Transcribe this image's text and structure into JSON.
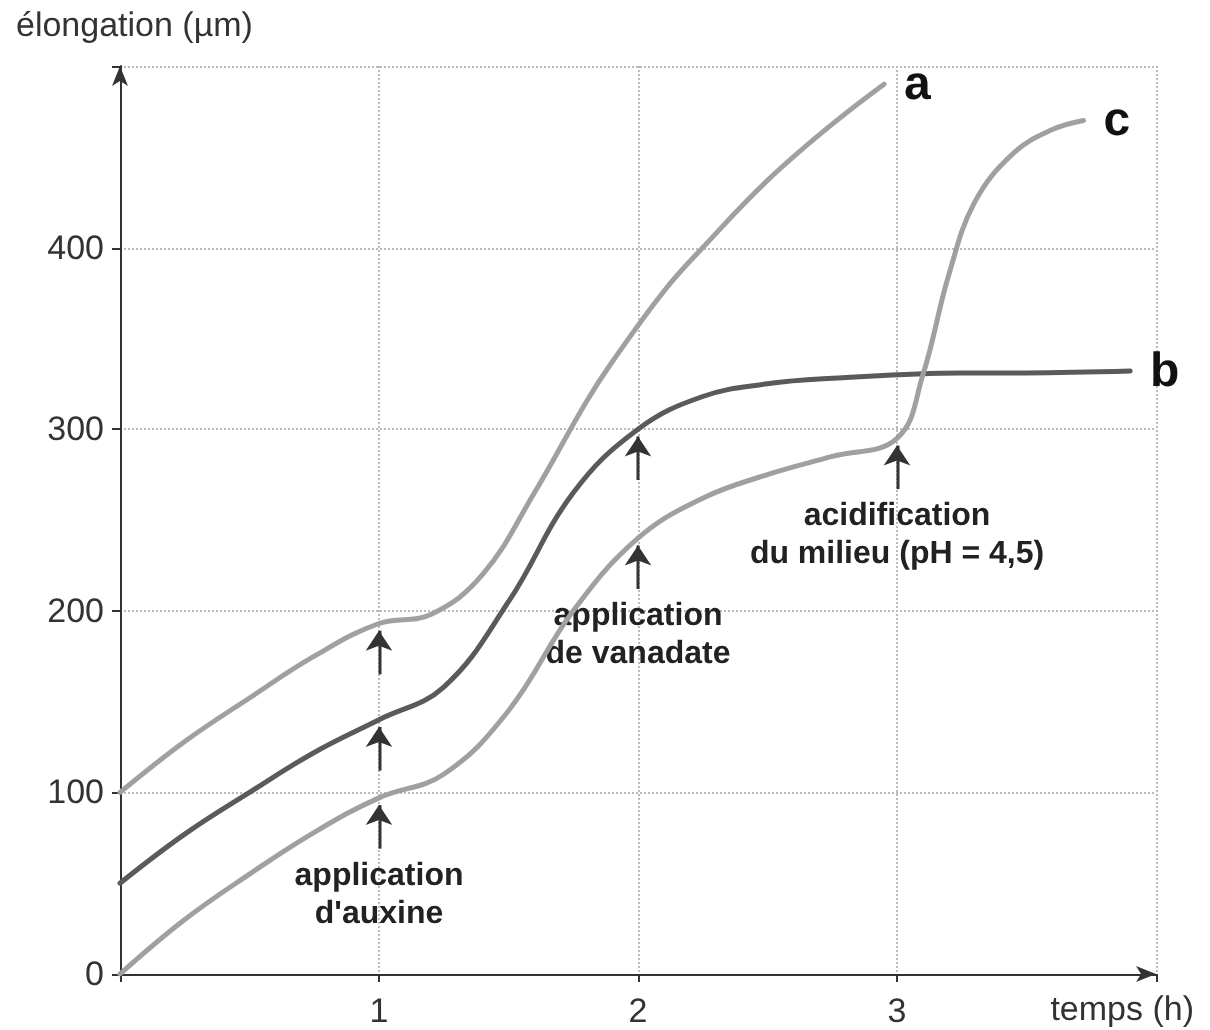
{
  "chart_data": {
    "type": "line",
    "xlabel": "temps (h)",
    "ylabel": "élongation (µm)",
    "xlim": [
      0,
      4
    ],
    "ylim": [
      0,
      500
    ],
    "xticks": [
      {
        "value": 0,
        "label": null
      },
      1,
      2,
      3,
      {
        "value": 4,
        "label": null
      }
    ],
    "yticks": [
      0,
      100,
      200,
      300,
      400,
      {
        "value": 500,
        "label": null
      }
    ],
    "grid": true,
    "legend": false,
    "marker": "none",
    "line_style": "solid",
    "series": [
      {
        "name": "a",
        "color": "#a0a0a0",
        "x": [
          0,
          0.25,
          0.5,
          0.75,
          1,
          1.2,
          1.4,
          1.6,
          1.8,
          1.9,
          2.1,
          2.25,
          2.5,
          2.75,
          2.95
        ],
        "values": [
          100,
          128,
          152,
          175,
          193,
          198,
          220,
          265,
          315,
          337,
          376,
          400,
          437,
          468,
          490
        ]
      },
      {
        "name": "b",
        "color": "#5a5a5a",
        "x": [
          0,
          0.25,
          0.5,
          0.75,
          1,
          1.25,
          1.5,
          1.75,
          2,
          2.25,
          2.5,
          2.75,
          3.25,
          3.5,
          3.9
        ],
        "values": [
          50,
          77,
          100,
          122,
          140,
          158,
          205,
          265,
          300,
          318,
          325,
          328,
          331,
          331,
          332
        ]
      },
      {
        "name": "c",
        "color": "#a0a0a0",
        "x": [
          0,
          0.25,
          0.5,
          0.75,
          1,
          1.25,
          1.5,
          1.75,
          2,
          2.25,
          2.5,
          2.75,
          3,
          3.1,
          3.2,
          3.3,
          3.45,
          3.6,
          3.72
        ],
        "values": [
          0,
          30,
          55,
          78,
          97,
          110,
          145,
          200,
          240,
          262,
          275,
          285,
          295,
          330,
          385,
          425,
          452,
          465,
          470
        ]
      }
    ],
    "annotations": [
      {
        "text": "application\nd'auxine",
        "x": 1,
        "y": 97
      },
      {
        "text": "application\nde vanadate",
        "x": 2,
        "y": 240
      },
      {
        "text": "acidification\ndu milieu (pH = 4,5)",
        "x": 3,
        "y": 295
      }
    ]
  }
}
